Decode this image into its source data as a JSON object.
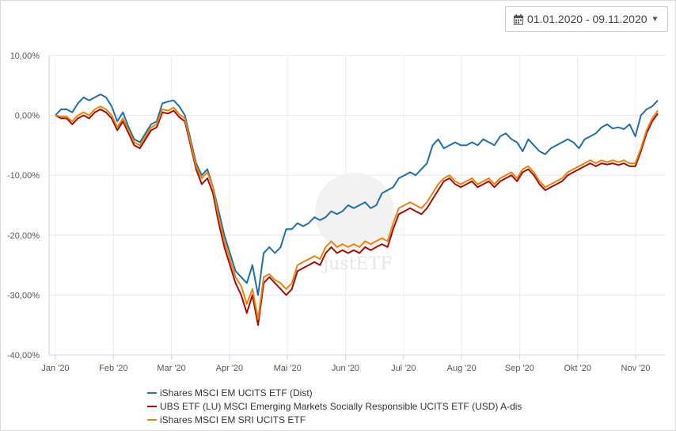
{
  "date_range": {
    "label": "01.01.2020 - 09.11.2020",
    "icon": "calendar-icon"
  },
  "watermark": "justETF",
  "chart_data": {
    "type": "line",
    "x_categories": [
      "Jan '20",
      "Feb '20",
      "Mar '20",
      "Apr '20",
      "Mai '20",
      "Jun '20",
      "Jul '20",
      "Aug '20",
      "Sep '20",
      "Okt '20",
      "Nov '20"
    ],
    "y_ticks": [
      "10,00%",
      "0,00%",
      "-10,00%",
      "-20,00%",
      "-30,00%",
      "-40,00%"
    ],
    "ylim": [
      -40,
      10
    ],
    "grid": true,
    "legend_position": "bottom",
    "series": [
      {
        "name": "iShares MSCI EM UCITS ETF (Dist)",
        "color": "#1f6fa3",
        "points": [
          [
            0,
            0
          ],
          [
            1,
            1
          ],
          [
            2,
            1
          ],
          [
            3,
            0.5
          ],
          [
            4,
            2
          ],
          [
            5,
            3
          ],
          [
            6,
            2.5
          ],
          [
            7,
            3
          ],
          [
            8,
            3.5
          ],
          [
            9,
            3
          ],
          [
            10,
            1.5
          ],
          [
            11,
            -1
          ],
          [
            12,
            0.5
          ],
          [
            13,
            -2
          ],
          [
            14,
            -4
          ],
          [
            15,
            -4.5
          ],
          [
            16,
            -3
          ],
          [
            17,
            -1.5
          ],
          [
            18,
            -1
          ],
          [
            19,
            2
          ],
          [
            20,
            2.3
          ],
          [
            21,
            2.5
          ],
          [
            22,
            1.5
          ],
          [
            23,
            0
          ],
          [
            24,
            -4
          ],
          [
            25,
            -8
          ],
          [
            26,
            -10
          ],
          [
            27,
            -9
          ],
          [
            28,
            -12
          ],
          [
            29,
            -16
          ],
          [
            30,
            -20
          ],
          [
            31,
            -23
          ],
          [
            32,
            -26
          ],
          [
            33,
            -27
          ],
          [
            34,
            -28
          ],
          [
            35,
            -25
          ],
          [
            36,
            -30
          ],
          [
            37,
            -23
          ],
          [
            38,
            -22
          ],
          [
            39,
            -23
          ],
          [
            40,
            -22
          ],
          [
            41,
            -19
          ],
          [
            42,
            -19
          ],
          [
            43,
            -18
          ],
          [
            44,
            -18.5
          ],
          [
            45,
            -18
          ],
          [
            46,
            -17
          ],
          [
            47,
            -17.5
          ],
          [
            48,
            -17
          ],
          [
            49,
            -16
          ],
          [
            50,
            -16.5
          ],
          [
            51,
            -16
          ],
          [
            52,
            -15
          ],
          [
            53,
            -15.5
          ],
          [
            54,
            -15
          ],
          [
            55,
            -14.5
          ],
          [
            56,
            -15.5
          ],
          [
            57,
            -15
          ],
          [
            58,
            -13
          ],
          [
            59,
            -12.5
          ],
          [
            60,
            -12
          ],
          [
            61,
            -10.5
          ],
          [
            62,
            -10
          ],
          [
            63,
            -9.5
          ],
          [
            64,
            -10
          ],
          [
            65,
            -9
          ],
          [
            66,
            -8
          ],
          [
            67,
            -5
          ],
          [
            68,
            -4
          ],
          [
            69,
            -5.5
          ],
          [
            70,
            -5
          ],
          [
            71,
            -4.5
          ],
          [
            72,
            -5
          ],
          [
            73,
            -5
          ],
          [
            74,
            -4.5
          ],
          [
            75,
            -5
          ],
          [
            76,
            -4
          ],
          [
            77,
            -4.5
          ],
          [
            78,
            -5
          ],
          [
            79,
            -3.5
          ],
          [
            80,
            -3
          ],
          [
            81,
            -4
          ],
          [
            82,
            -4.5
          ],
          [
            83,
            -6
          ],
          [
            84,
            -4
          ],
          [
            85,
            -5
          ],
          [
            86,
            -6
          ],
          [
            87,
            -6.5
          ],
          [
            88,
            -5.5
          ],
          [
            89,
            -5
          ],
          [
            90,
            -4.5
          ],
          [
            91,
            -4
          ],
          [
            92,
            -4.5
          ],
          [
            93,
            -5.5
          ],
          [
            94,
            -4
          ],
          [
            95,
            -3.5
          ],
          [
            96,
            -3
          ],
          [
            97,
            -2
          ],
          [
            98,
            -1.5
          ],
          [
            99,
            -2.2
          ],
          [
            100,
            -2
          ],
          [
            101,
            -2.3
          ],
          [
            102,
            -1.5
          ],
          [
            103,
            -3.5
          ],
          [
            104,
            0
          ],
          [
            105,
            1
          ],
          [
            106,
            1.5
          ],
          [
            107,
            2.5
          ]
        ]
      },
      {
        "name": "UBS ETF (LU) MSCI Emerging Markets Socially Responsible UCITS ETF (USD) A-dis",
        "color": "#a10d0d",
        "points": [
          [
            0,
            0
          ],
          [
            1,
            -0.5
          ],
          [
            2,
            -0.5
          ],
          [
            3,
            -1.5
          ],
          [
            4,
            -0.5
          ],
          [
            5,
            0
          ],
          [
            6,
            -0.5
          ],
          [
            7,
            0.5
          ],
          [
            8,
            1
          ],
          [
            9,
            0.5
          ],
          [
            10,
            -0.5
          ],
          [
            11,
            -2.5
          ],
          [
            12,
            -1
          ],
          [
            13,
            -3
          ],
          [
            14,
            -5
          ],
          [
            15,
            -5.5
          ],
          [
            16,
            -4
          ],
          [
            17,
            -2.5
          ],
          [
            18,
            -2
          ],
          [
            19,
            0.5
          ],
          [
            20,
            0.3
          ],
          [
            21,
            0.8
          ],
          [
            22,
            -0.3
          ],
          [
            23,
            -1
          ],
          [
            24,
            -5
          ],
          [
            25,
            -9
          ],
          [
            26,
            -11.5
          ],
          [
            27,
            -10.5
          ],
          [
            28,
            -13
          ],
          [
            29,
            -18
          ],
          [
            30,
            -22
          ],
          [
            31,
            -25
          ],
          [
            32,
            -28
          ],
          [
            33,
            -30
          ],
          [
            34,
            -33
          ],
          [
            35,
            -30
          ],
          [
            36,
            -35
          ],
          [
            37,
            -28
          ],
          [
            38,
            -27
          ],
          [
            39,
            -28
          ],
          [
            40,
            -29
          ],
          [
            41,
            -30
          ],
          [
            42,
            -29
          ],
          [
            43,
            -26
          ],
          [
            44,
            -25.5
          ],
          [
            45,
            -25
          ],
          [
            46,
            -24.5
          ],
          [
            47,
            -25
          ],
          [
            48,
            -23
          ],
          [
            49,
            -22
          ],
          [
            50,
            -23
          ],
          [
            51,
            -22.5
          ],
          [
            52,
            -23
          ],
          [
            53,
            -22.5
          ],
          [
            54,
            -23
          ],
          [
            55,
            -22
          ],
          [
            56,
            -22.5
          ],
          [
            57,
            -22
          ],
          [
            58,
            -21.5
          ],
          [
            59,
            -22
          ],
          [
            60,
            -19
          ],
          [
            61,
            -16.5
          ],
          [
            62,
            -16
          ],
          [
            63,
            -15.5
          ],
          [
            64,
            -16
          ],
          [
            65,
            -16.5
          ],
          [
            66,
            -15.5
          ],
          [
            67,
            -14
          ],
          [
            68,
            -12.5
          ],
          [
            69,
            -11
          ],
          [
            70,
            -10.5
          ],
          [
            71,
            -11.5
          ],
          [
            72,
            -12
          ],
          [
            73,
            -11.5
          ],
          [
            74,
            -11
          ],
          [
            75,
            -12
          ],
          [
            76,
            -11.5
          ],
          [
            77,
            -11
          ],
          [
            78,
            -12
          ],
          [
            79,
            -11
          ],
          [
            80,
            -10.5
          ],
          [
            81,
            -10
          ],
          [
            82,
            -11
          ],
          [
            83,
            -9.5
          ],
          [
            84,
            -9
          ],
          [
            85,
            -10
          ],
          [
            86,
            -11.5
          ],
          [
            87,
            -12.5
          ],
          [
            88,
            -12
          ],
          [
            89,
            -11.5
          ],
          [
            90,
            -11
          ],
          [
            91,
            -10
          ],
          [
            92,
            -9.5
          ],
          [
            93,
            -9
          ],
          [
            94,
            -8.5
          ],
          [
            95,
            -8
          ],
          [
            96,
            -8.5
          ],
          [
            97,
            -8
          ],
          [
            98,
            -8.2
          ],
          [
            99,
            -8
          ],
          [
            100,
            -8.3
          ],
          [
            101,
            -8
          ],
          [
            102,
            -8.5
          ],
          [
            103,
            -8.5
          ],
          [
            104,
            -6
          ],
          [
            105,
            -3
          ],
          [
            106,
            -1
          ],
          [
            107,
            0.3
          ]
        ]
      },
      {
        "name": "iShares MSCI EM SRI UCITS ETF",
        "color": "#e8830c",
        "points": [
          [
            0,
            0
          ],
          [
            1,
            -0.2
          ],
          [
            2,
            -0.2
          ],
          [
            3,
            -1
          ],
          [
            4,
            0
          ],
          [
            5,
            0.5
          ],
          [
            6,
            0
          ],
          [
            7,
            1
          ],
          [
            8,
            1.5
          ],
          [
            9,
            1
          ],
          [
            10,
            0
          ],
          [
            11,
            -2
          ],
          [
            12,
            -0.5
          ],
          [
            13,
            -2.5
          ],
          [
            14,
            -4.5
          ],
          [
            15,
            -5
          ],
          [
            16,
            -3.5
          ],
          [
            17,
            -2
          ],
          [
            18,
            -1.5
          ],
          [
            19,
            1
          ],
          [
            20,
            0.8
          ],
          [
            21,
            1.3
          ],
          [
            22,
            0.2
          ],
          [
            23,
            -0.5
          ],
          [
            24,
            -4.5
          ],
          [
            25,
            -8.5
          ],
          [
            26,
            -10.5
          ],
          [
            27,
            -9.5
          ],
          [
            28,
            -12
          ],
          [
            29,
            -17
          ],
          [
            30,
            -21
          ],
          [
            31,
            -24
          ],
          [
            32,
            -27
          ],
          [
            33,
            -28.5
          ],
          [
            34,
            -31.5
          ],
          [
            35,
            -29
          ],
          [
            36,
            -34
          ],
          [
            37,
            -27
          ],
          [
            38,
            -26.5
          ],
          [
            39,
            -27.5
          ],
          [
            40,
            -28
          ],
          [
            41,
            -29
          ],
          [
            42,
            -28
          ],
          [
            43,
            -25
          ],
          [
            44,
            -24.5
          ],
          [
            45,
            -24
          ],
          [
            46,
            -23.5
          ],
          [
            47,
            -24
          ],
          [
            48,
            -22
          ],
          [
            49,
            -21
          ],
          [
            50,
            -22
          ],
          [
            51,
            -21.5
          ],
          [
            52,
            -22
          ],
          [
            53,
            -21.5
          ],
          [
            54,
            -22
          ],
          [
            55,
            -21
          ],
          [
            56,
            -21.5
          ],
          [
            57,
            -21
          ],
          [
            58,
            -20.5
          ],
          [
            59,
            -21
          ],
          [
            60,
            -18
          ],
          [
            61,
            -15.5
          ],
          [
            62,
            -15
          ],
          [
            63,
            -14.5
          ],
          [
            64,
            -15
          ],
          [
            65,
            -15.5
          ],
          [
            66,
            -14.5
          ],
          [
            67,
            -13
          ],
          [
            68,
            -11.5
          ],
          [
            69,
            -10.5
          ],
          [
            70,
            -10
          ],
          [
            71,
            -11
          ],
          [
            72,
            -11.5
          ],
          [
            73,
            -11
          ],
          [
            74,
            -10.5
          ],
          [
            75,
            -11.5
          ],
          [
            76,
            -11
          ],
          [
            77,
            -10.5
          ],
          [
            78,
            -11.5
          ],
          [
            79,
            -10.5
          ],
          [
            80,
            -10
          ],
          [
            81,
            -9.5
          ],
          [
            82,
            -10.5
          ],
          [
            83,
            -9
          ],
          [
            84,
            -8.5
          ],
          [
            85,
            -9.5
          ],
          [
            86,
            -11
          ],
          [
            87,
            -12
          ],
          [
            88,
            -11.5
          ],
          [
            89,
            -11
          ],
          [
            90,
            -10.5
          ],
          [
            91,
            -9.5
          ],
          [
            92,
            -9
          ],
          [
            93,
            -8.5
          ],
          [
            94,
            -8
          ],
          [
            95,
            -7.5
          ],
          [
            96,
            -8
          ],
          [
            97,
            -7.5
          ],
          [
            98,
            -7.8
          ],
          [
            99,
            -7.5
          ],
          [
            100,
            -7.8
          ],
          [
            101,
            -7.5
          ],
          [
            102,
            -8
          ],
          [
            103,
            -8
          ],
          [
            104,
            -5.5
          ],
          [
            105,
            -2.5
          ],
          [
            106,
            -0.5
          ],
          [
            107,
            0.8
          ]
        ]
      }
    ]
  }
}
